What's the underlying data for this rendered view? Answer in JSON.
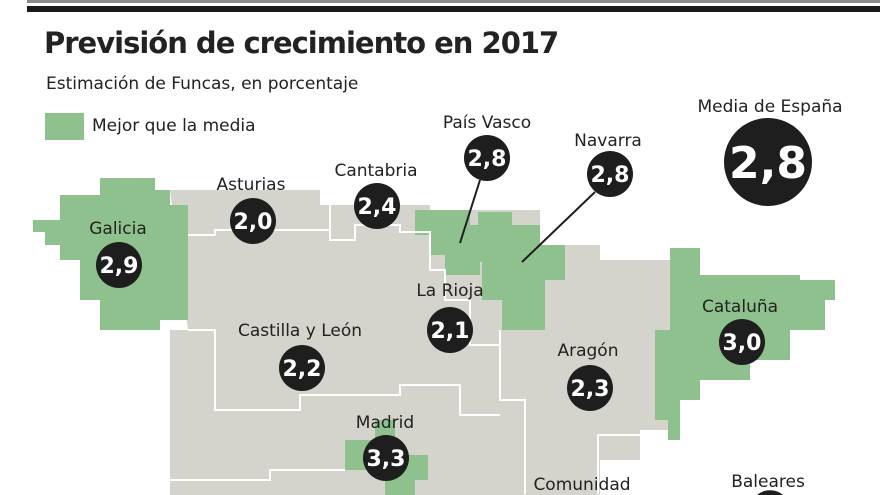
{
  "title": "Previsión de crecimiento en 2017",
  "subtitle": "Estimación de Funcas, en porcentaje",
  "legend": {
    "label": "Mejor que la media",
    "color": "#8fc18f"
  },
  "colors": {
    "better": "#8fc18f",
    "other": "#d4d3cc",
    "badge": "#1e1e1e"
  },
  "national": {
    "label": "Media de España",
    "value": "2,8"
  },
  "regions": [
    {
      "name": "Galicia",
      "value": "2,9",
      "better": true
    },
    {
      "name": "Asturias",
      "value": "2,0",
      "better": false
    },
    {
      "name": "Cantabria",
      "value": "2,4",
      "better": false
    },
    {
      "name": "País Vasco",
      "value": "2,8",
      "better": true
    },
    {
      "name": "Navarra",
      "value": "2,8",
      "better": true
    },
    {
      "name": "La Rioja",
      "value": "2,1",
      "better": false
    },
    {
      "name": "Castilla y León",
      "value": "2,2",
      "better": false
    },
    {
      "name": "Aragón",
      "value": "2,3",
      "better": false
    },
    {
      "name": "Cataluña",
      "value": "3,0",
      "better": true
    },
    {
      "name": "Madrid",
      "value": "3,3",
      "better": true
    },
    {
      "name": "Comunidad",
      "value": "",
      "better": false
    },
    {
      "name": "Baleares",
      "value": "",
      "better": false
    }
  ]
}
